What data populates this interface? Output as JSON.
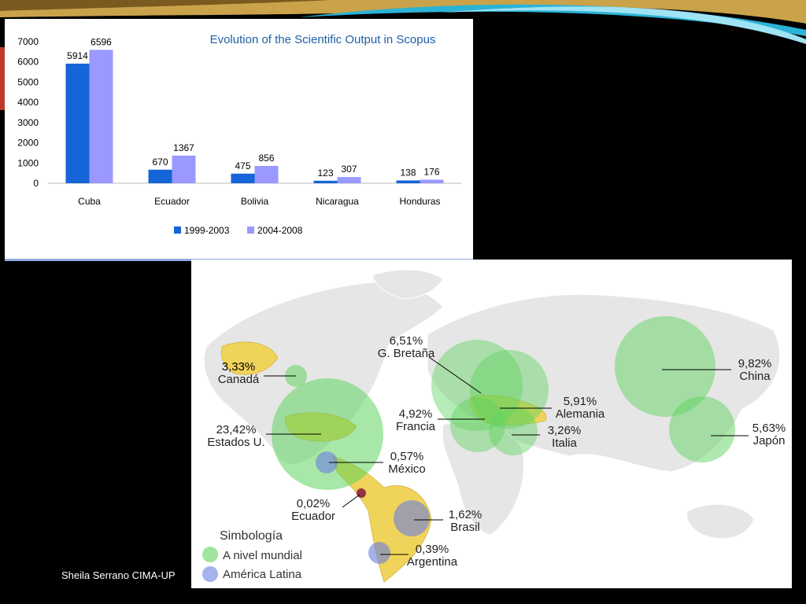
{
  "footer_text": "Sheila Serrano CIMA-UP",
  "colors": {
    "series1": "#1565d8",
    "series2": "#9999ff",
    "world": "#5fd35f",
    "latam": "#6a7fe0",
    "title": "#1f5fa6"
  },
  "chart_data": {
    "type": "bar",
    "title": "Evolution of the Scientific Output in Scopus",
    "xlabel": "",
    "ylabel": "",
    "ylim": [
      0,
      7000
    ],
    "yticks": [
      "0",
      "1000",
      "2000",
      "3000",
      "4000",
      "5000",
      "6000",
      "7000"
    ],
    "categories": [
      "Cuba",
      "Ecuador",
      "Bolivia",
      "Nicaragua",
      "Honduras"
    ],
    "series": [
      {
        "name": "1999-2003",
        "values": [
          5914,
          670,
          475,
          123,
          138
        ]
      },
      {
        "name": "2004-2008",
        "values": [
          6596,
          1367,
          856,
          307,
          176
        ]
      }
    ],
    "legend_position": "bottom",
    "grid": false
  },
  "map": {
    "legend_title": "Simbología",
    "legend_items": [
      {
        "label": "A nivel mundial",
        "kind": "world"
      },
      {
        "label": "América Latina",
        "kind": "latam"
      }
    ],
    "labels": [
      {
        "pct": "3,33%",
        "name": "Canadá",
        "kind": "world"
      },
      {
        "pct": "23,42%",
        "name": "Estados U.",
        "kind": "world"
      },
      {
        "pct": "0,57%",
        "name": "México",
        "kind": "latam"
      },
      {
        "pct": "0,02%",
        "name": "Ecuador",
        "kind": "latam"
      },
      {
        "pct": "1,62%",
        "name": "Brasil",
        "kind": "latam"
      },
      {
        "pct": "0,39%",
        "name": "Argentina",
        "kind": "latam"
      },
      {
        "pct": "6,51%",
        "name": "G. Bretaña",
        "kind": "world"
      },
      {
        "pct": "4,92%",
        "name": "Francia",
        "kind": "world"
      },
      {
        "pct": "5,91%",
        "name": "Alemania",
        "kind": "world"
      },
      {
        "pct": "3,26%",
        "name": "Italia",
        "kind": "world"
      },
      {
        "pct": "9,82%",
        "name": "China",
        "kind": "world"
      },
      {
        "pct": "5,63%",
        "name": "Japón",
        "kind": "world"
      }
    ]
  }
}
